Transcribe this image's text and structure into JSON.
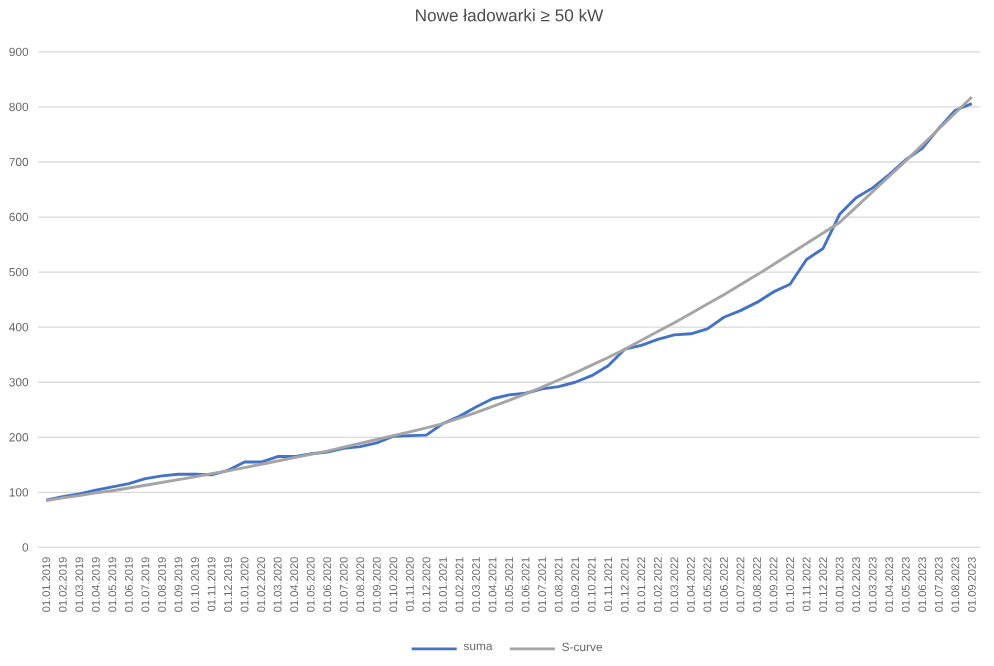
{
  "chart_data": {
    "type": "line",
    "title": "Nowe ładowarki ≥ 50 kW",
    "categories": [
      "01.01.2019",
      "01.02.2019",
      "01.03.2019",
      "01.04.2019",
      "01.05.2019",
      "01.06.2019",
      "01.07.2019",
      "01.08.2019",
      "01.09.2019",
      "01.10.2019",
      "01.11.2019",
      "01.12.2019",
      "01.01.2020",
      "01.02.2020",
      "01.03.2020",
      "01.04.2020",
      "01.05.2020",
      "01.06.2020",
      "01.07.2020",
      "01.08.2020",
      "01.09.2020",
      "01.10.2020",
      "01.11.2020",
      "01.12.2020",
      "01.01.2021",
      "01.02.2021",
      "01.03.2021",
      "01.04.2021",
      "01.05.2021",
      "01.06.2021",
      "01.07.2021",
      "01.08.2021",
      "01.09.2021",
      "01.10.2021",
      "01.11.2021",
      "01.12.2021",
      "01.01.2022",
      "01.02.2022",
      "01.03.2022",
      "01.04.2022",
      "01.05.2022",
      "01.06.2022",
      "01.07.2022",
      "01.08.2022",
      "01.09.2022",
      "01.10.2022",
      "01.11.2022",
      "01.12.2022",
      "01.01.2023",
      "01.02.2023",
      "01.03.2023",
      "01.04.2023",
      "01.05.2023",
      "01.06.2023",
      "01.07.2023",
      "01.08.2023",
      "01.09.2023"
    ],
    "series": [
      {
        "name": "suma",
        "color": "#4472c4",
        "values": [
          86,
          92,
          97,
          104,
          110,
          116,
          125,
          130,
          133,
          133,
          132,
          140,
          155,
          155,
          165,
          165,
          170,
          173,
          180,
          183,
          190,
          202,
          203,
          204,
          225,
          238,
          255,
          270,
          277,
          280,
          288,
          292,
          300,
          312,
          330,
          360,
          367,
          378,
          386,
          388,
          397,
          418,
          430,
          445,
          464,
          478,
          523,
          543,
          605,
          635,
          653,
          677,
          704,
          725,
          761,
          794,
          806
        ]
      },
      {
        "name": "S-curve",
        "color": "#a5a5a5",
        "values": [
          85,
          90,
          94,
          99,
          103,
          108,
          113,
          118,
          123,
          128,
          134,
          139,
          145,
          151,
          157,
          163,
          169,
          175,
          182,
          189,
          196,
          203,
          210,
          217,
          225,
          235,
          245,
          256,
          267,
          279,
          291,
          304,
          317,
          331,
          345,
          360,
          376,
          392,
          408,
          425,
          442,
          459,
          477,
          495,
          514,
          533,
          552,
          571,
          590,
          618,
          646,
          674,
          702,
          731,
          760,
          789,
          818
        ]
      }
    ],
    "ylim": [
      0,
      900
    ],
    "yticks": [
      0,
      100,
      200,
      300,
      400,
      500,
      600,
      700,
      800,
      900
    ],
    "grid": "y",
    "legend": "bottom"
  }
}
